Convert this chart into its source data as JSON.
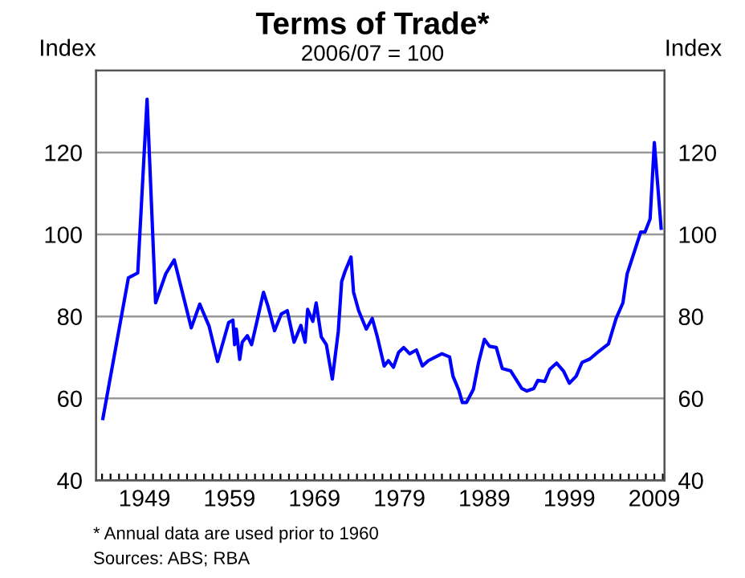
{
  "chart_data": {
    "type": "line",
    "title": "Terms of Trade*",
    "subtitle": "2006/07 = 100",
    "ylabel": "Index",
    "y2label": "Index",
    "annotations": [
      "* Annual data are used prior to 1960",
      "Sources: ABS; RBA"
    ],
    "x": [
      1944.1,
      1947.1,
      1948.2,
      1949.3,
      1950.3,
      1951.5,
      1952.5,
      1954.5,
      1955.5,
      1956.6,
      1957.6,
      1958.9,
      1959.4,
      1959.6,
      1959.8,
      1960.2,
      1960.5,
      1961.1,
      1961.6,
      1962.2,
      1963.0,
      1963.5,
      1964.3,
      1965.1,
      1965.8,
      1966.6,
      1967.4,
      1967.9,
      1968.2,
      1968.8,
      1969.2,
      1969.8,
      1970.4,
      1971.1,
      1971.8,
      1972.2,
      1972.6,
      1973.3,
      1973.6,
      1974.2,
      1975.1,
      1975.8,
      1976.4,
      1977.2,
      1977.7,
      1978.3,
      1978.9,
      1979.5,
      1980.2,
      1981.0,
      1981.7,
      1982.4,
      1984.0,
      1984.9,
      1985.3,
      1986.0,
      1986.4,
      1986.9,
      1987.7,
      1988.3,
      1989.0,
      1989.6,
      1990.4,
      1991.1,
      1992.1,
      1993.4,
      1994.0,
      1994.8,
      1995.3,
      1996.1,
      1996.7,
      1997.5,
      1998.3,
      1999.0,
      1999.8,
      2000.5,
      2001.4,
      2002.3,
      2003.6,
      2004.5,
      2005.3,
      2005.8,
      2006.4,
      2007.4,
      2007.9,
      2008.5,
      2009.0,
      2009.8
    ],
    "series": [
      {
        "color": "#0000ff",
        "values": [
          55.1,
          89.4,
          90.6,
          133,
          83.3,
          90.4,
          93.8,
          77.2,
          83,
          77.6,
          69,
          78.5,
          79.1,
          73.1,
          76.9,
          69.5,
          73.7,
          75.3,
          73.1,
          78.5,
          85.9,
          82.7,
          76.5,
          80.6,
          81.4,
          73.7,
          77.8,
          73.7,
          81.7,
          78.8,
          83.3,
          75,
          73.1,
          64.7,
          76.3,
          88.5,
          91,
          94.5,
          85.9,
          81.4,
          76.9,
          79.5,
          75,
          67.9,
          69.2,
          67.6,
          71.2,
          72.4,
          70.9,
          71.8,
          67.9,
          69.2,
          70.9,
          70.1,
          65.4,
          61.9,
          59,
          59,
          62.2,
          68.6,
          74.4,
          72.7,
          72.4,
          67.3,
          66.7,
          62.4,
          61.8,
          62.4,
          64.4,
          64.1,
          67.1,
          68.6,
          66.7,
          63.7,
          65.4,
          68.8,
          69.6,
          71.2,
          73.3,
          79.5,
          83.3,
          90.4,
          94.2,
          100.6,
          100.6,
          103.8,
          122.4,
          101.5
        ]
      }
    ],
    "xlim": [
      1943.3,
      2010.2
    ],
    "ylim": [
      40,
      140
    ],
    "y2lim": [
      40,
      140
    ],
    "yticks": [
      40,
      60,
      80,
      100,
      120
    ],
    "y2ticks": [
      40,
      60,
      80,
      100,
      120
    ],
    "xticks": [
      {
        "value": 1944,
        "label": null
      },
      {
        "value": 1945,
        "label": null
      },
      {
        "value": 1946,
        "label": null
      },
      {
        "value": 1947,
        "label": null
      },
      {
        "value": 1948,
        "label": null
      },
      1949,
      {
        "value": 1950,
        "label": null
      },
      {
        "value": 1951,
        "label": null
      },
      {
        "value": 1952,
        "label": null
      },
      {
        "value": 1953,
        "label": null
      },
      {
        "value": 1954,
        "label": null
      },
      {
        "value": 1955,
        "label": null
      },
      {
        "value": 1956,
        "label": null
      },
      {
        "value": 1957,
        "label": null
      },
      {
        "value": 1958,
        "label": null
      },
      1959,
      {
        "value": 1960,
        "label": null
      },
      {
        "value": 1961,
        "label": null
      },
      {
        "value": 1962,
        "label": null
      },
      {
        "value": 1963,
        "label": null
      },
      {
        "value": 1964,
        "label": null
      },
      {
        "value": 1965,
        "label": null
      },
      {
        "value": 1966,
        "label": null
      },
      {
        "value": 1967,
        "label": null
      },
      {
        "value": 1968,
        "label": null
      },
      1969,
      {
        "value": 1970,
        "label": null
      },
      {
        "value": 1971,
        "label": null
      },
      {
        "value": 1972,
        "label": null
      },
      {
        "value": 1973,
        "label": null
      },
      {
        "value": 1974,
        "label": null
      },
      {
        "value": 1975,
        "label": null
      },
      {
        "value": 1976,
        "label": null
      },
      {
        "value": 1977,
        "label": null
      },
      {
        "value": 1978,
        "label": null
      },
      1979,
      {
        "value": 1980,
        "label": null
      },
      {
        "value": 1981,
        "label": null
      },
      {
        "value": 1982,
        "label": null
      },
      {
        "value": 1983,
        "label": null
      },
      {
        "value": 1984,
        "label": null
      },
      {
        "value": 1985,
        "label": null
      },
      {
        "value": 1986,
        "label": null
      },
      {
        "value": 1987,
        "label": null
      },
      {
        "value": 1988,
        "label": null
      },
      1989,
      {
        "value": 1990,
        "label": null
      },
      {
        "value": 1991,
        "label": null
      },
      {
        "value": 1992,
        "label": null
      },
      {
        "value": 1993,
        "label": null
      },
      {
        "value": 1994,
        "label": null
      },
      {
        "value": 1995,
        "label": null
      },
      {
        "value": 1996,
        "label": null
      },
      {
        "value": 1997,
        "label": null
      },
      {
        "value": 1998,
        "label": null
      },
      1999,
      {
        "value": 2000,
        "label": null
      },
      {
        "value": 2001,
        "label": null
      },
      {
        "value": 2002,
        "label": null
      },
      {
        "value": 2003,
        "label": null
      },
      {
        "value": 2004,
        "label": null
      },
      {
        "value": 2005,
        "label": null
      },
      {
        "value": 2006,
        "label": null
      },
      {
        "value": 2007,
        "label": null
      },
      {
        "value": 2008,
        "label": null
      },
      2009,
      {
        "value": 2010,
        "label": null
      }
    ],
    "grid": "y",
    "legend": false,
    "marker": "none",
    "line_style": "solid"
  }
}
